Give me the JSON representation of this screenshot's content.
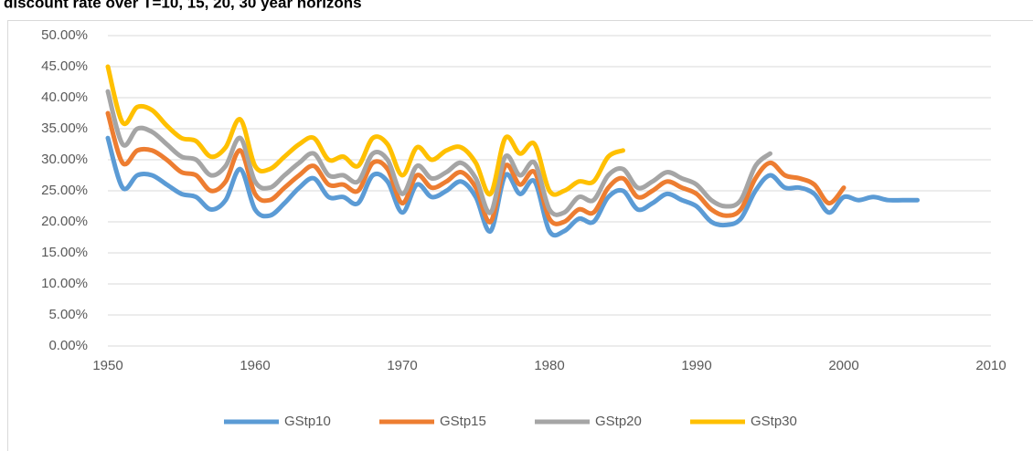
{
  "chart_data": {
    "type": "line",
    "title": "discount rate over T=10, 15, 20, 30 year horizons",
    "xlim": [
      1950,
      2010
    ],
    "xticks": [
      1950,
      1960,
      1970,
      1980,
      1990,
      2000,
      2010
    ],
    "ylim": [
      0,
      50
    ],
    "yticks": [
      {
        "value": 0,
        "label": "0.00%"
      },
      {
        "value": 5,
        "label": "5.00%"
      },
      {
        "value": 10,
        "label": "10.00%"
      },
      {
        "value": 15,
        "label": "15.00%"
      },
      {
        "value": 20,
        "label": "20.00%"
      },
      {
        "value": 25,
        "label": "25.00%"
      },
      {
        "value": 30,
        "label": "30.00%"
      },
      {
        "value": 35,
        "label": "35.00%"
      },
      {
        "value": 40,
        "label": "40.00%"
      },
      {
        "value": 45,
        "label": "45.00%"
      },
      {
        "value": 50,
        "label": "50.00%"
      }
    ],
    "grid": true,
    "legend": "bottom",
    "series": [
      {
        "name": "GStp10",
        "color": "#5b9bd5",
        "x0": 1950,
        "values": [
          33.5,
          25.5,
          27.5,
          27.5,
          26,
          24.5,
          24,
          22,
          23.5,
          28.5,
          22,
          21,
          23,
          25.5,
          27,
          24,
          24,
          23,
          27.5,
          26.5,
          21.5,
          26,
          24,
          25,
          26.5,
          24,
          18.5,
          27.5,
          24.5,
          26.5,
          18.5,
          18.5,
          20.5,
          20,
          24,
          25,
          22,
          23,
          24.5,
          23.5,
          22.5,
          20,
          19.5,
          20.5,
          25,
          27.5,
          25.5,
          25.5,
          24.5,
          21.5,
          24,
          23.5,
          24,
          23.5,
          23.5,
          23.5
        ]
      },
      {
        "name": "GStp15",
        "color": "#ed7d31",
        "x0": 1950,
        "values": [
          37.5,
          29.5,
          31.5,
          31.5,
          30,
          28,
          27.5,
          25,
          26.5,
          31.5,
          24.5,
          23.5,
          25.5,
          27.5,
          29,
          26,
          26,
          25,
          29.5,
          28.5,
          23,
          27.5,
          25.5,
          26.5,
          28,
          25.5,
          20,
          29,
          26,
          28,
          20.5,
          20,
          22,
          21.5,
          25.5,
          27,
          24,
          25,
          26.5,
          25.5,
          24.5,
          22,
          21,
          22,
          27,
          29.5,
          27.5,
          27,
          26,
          23,
          25.5
        ]
      },
      {
        "name": "GStp20",
        "color": "#a5a5a5",
        "x0": 1950,
        "values": [
          41,
          32.5,
          35,
          34.5,
          32.5,
          30.5,
          30,
          27.5,
          29,
          33.5,
          26.5,
          25.5,
          27.5,
          29.5,
          31,
          27.5,
          27.5,
          26.5,
          31,
          30,
          24.5,
          29,
          27,
          28,
          29.5,
          27,
          21.5,
          30.5,
          27.5,
          29.5,
          22,
          21.5,
          24,
          23.5,
          27.5,
          28.5,
          25.5,
          26.5,
          28,
          27,
          26,
          23.5,
          22.5,
          23.5,
          29,
          31
        ]
      },
      {
        "name": "GStp30",
        "color": "#ffc000",
        "x0": 1950,
        "values": [
          45,
          36,
          38.5,
          38,
          35.5,
          33.5,
          33,
          30.5,
          32,
          36.5,
          29,
          28.5,
          30.5,
          32.5,
          33.5,
          30,
          30.5,
          29,
          33.5,
          32.5,
          27.5,
          32,
          30,
          31.5,
          32,
          29.5,
          24.5,
          33.5,
          31,
          32.5,
          25,
          25,
          26.5,
          26.5,
          30.5,
          31.5
        ]
      }
    ]
  }
}
